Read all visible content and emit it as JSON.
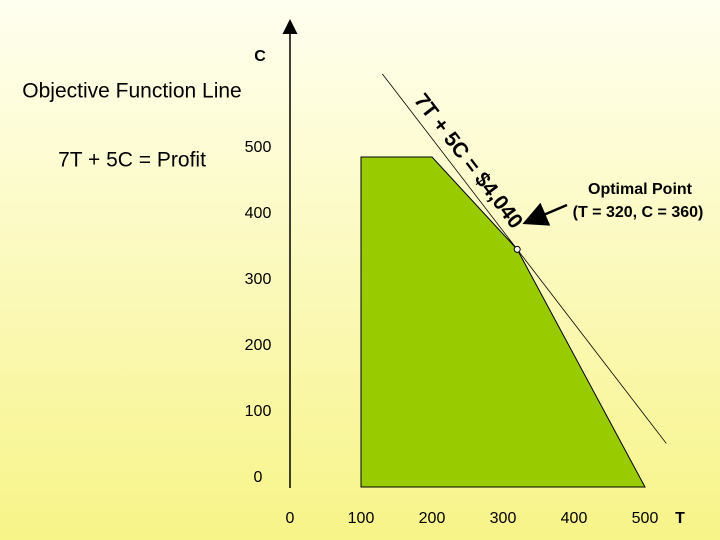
{
  "chart_data": {
    "type": "lp",
    "left_texts": [
      "Objective Function Line",
      "7T + 5C = Profit"
    ],
    "x_label": "T",
    "y_label": "C",
    "xlim": [
      0,
      600
    ],
    "ylim": [
      0,
      700
    ],
    "xticks": [
      0,
      100,
      200,
      300,
      400,
      500
    ],
    "yticks": [
      0,
      100,
      200,
      300,
      400,
      500
    ],
    "region": {
      "color": "#99cc00",
      "x": [
        100,
        100,
        200,
        320,
        500
      ],
      "y": [
        0,
        500,
        500,
        360,
        0
      ]
    },
    "objective_line": {
      "label": "7T + 5C = $4,040",
      "x": [
        130,
        530
      ],
      "y": [
        626,
        66
      ]
    },
    "optimal_point": {
      "title": "Optimal Point",
      "label": "(T = 320, C = 360)",
      "x": 320,
      "y": 360
    }
  }
}
